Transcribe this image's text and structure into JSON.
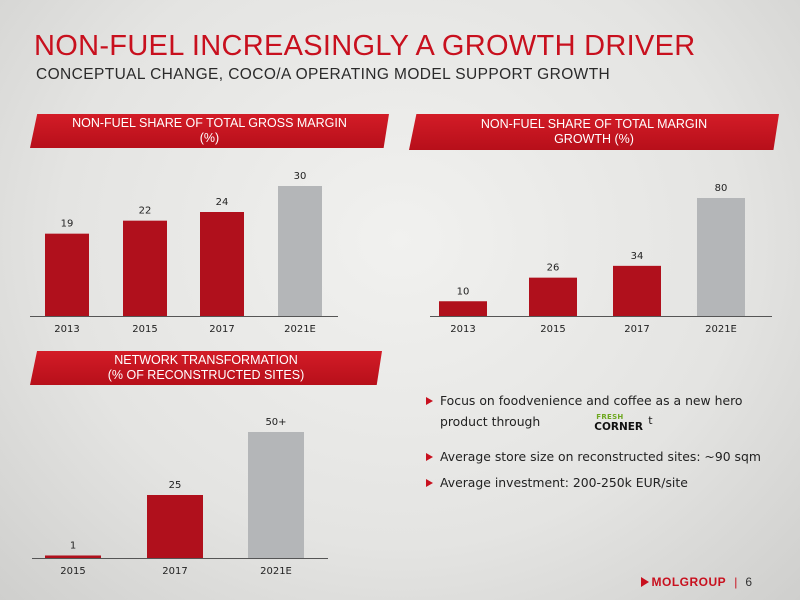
{
  "title": "NON-FUEL INCREASINGLY A GROWTH DRIVER",
  "subtitle": "CONCEPTUAL CHANGE, COCO/A OPERATING MODEL SUPPORT GROWTH",
  "colors": {
    "accent": "#c8101e",
    "bar_actual": "#b0101c",
    "bar_estimate": "#b4b6b8"
  },
  "chart_data": [
    {
      "type": "bar",
      "title_lines": [
        "NON-FUEL SHARE OF TOTAL GROSS MARGIN",
        "(%)"
      ],
      "categories": [
        "2013",
        "2015",
        "2017",
        "2021E"
      ],
      "values": [
        19,
        22,
        24,
        30
      ],
      "value_labels": [
        "19",
        "22",
        "24",
        "30"
      ],
      "estimate_category": "2021E",
      "ylim": [
        0,
        30
      ]
    },
    {
      "type": "bar",
      "title_lines": [
        "NON-FUEL SHARE OF TOTAL MARGIN",
        "GROWTH (%)"
      ],
      "categories": [
        "2013",
        "2015",
        "2017",
        "2021E"
      ],
      "values": [
        10,
        26,
        34,
        80
      ],
      "value_labels": [
        "10",
        "26",
        "34",
        "80"
      ],
      "estimate_category": "2021E",
      "ylim": [
        0,
        80
      ]
    },
    {
      "type": "bar",
      "title_lines": [
        "NETWORK TRANSFORMATION",
        "(% OF RECONSTRUCTED SITES)"
      ],
      "categories": [
        "2015",
        "2017",
        "2021E"
      ],
      "values": [
        1,
        25,
        50
      ],
      "value_labels": [
        "1",
        "25",
        "50+"
      ],
      "estimate_category": "2021E",
      "ylim": [
        0,
        50
      ]
    }
  ],
  "bullets": {
    "item1_text": "Focus on foodvenience and coffee as a new hero product through",
    "item2_text": "Average store size on reconstructed sites: ~90 sqm",
    "item3_text": "Average investment: 200-250k EUR/site",
    "logo_fresh": "FRESH",
    "logo_corner": "CORNER",
    "logo_tail": "t"
  },
  "footer": {
    "brand": "MOLGROUP",
    "separator": "|",
    "page": "6"
  }
}
